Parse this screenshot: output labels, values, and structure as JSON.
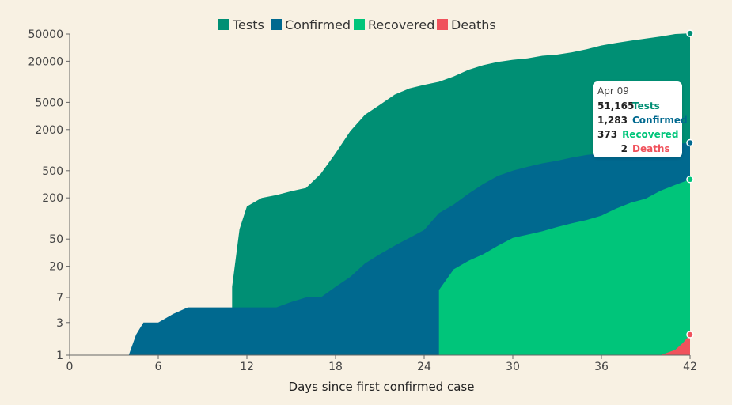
{
  "colors": {
    "tests": "#008f74",
    "confirmed": "#00698f",
    "recovered": "#00c57a",
    "deaths": "#f0525c",
    "background": "#f8f1e3"
  },
  "chart_data": {
    "type": "area",
    "scale_y": "log",
    "xlabel": "Days since first confirmed case",
    "ylabel": "",
    "xlim": [
      0,
      42
    ],
    "ylim": [
      1,
      50000
    ],
    "x_ticks": [
      0,
      6,
      12,
      18,
      24,
      30,
      36,
      42
    ],
    "y_ticks": [
      1,
      3,
      7,
      20,
      50,
      200,
      500,
      2000,
      5000,
      20000,
      50000
    ],
    "legend_position": "top-center",
    "series": [
      {
        "name": "Tests",
        "key": "tests",
        "points": [
          [
            11,
            10
          ],
          [
            11.5,
            70
          ],
          [
            12,
            150
          ],
          [
            13,
            200
          ],
          [
            14,
            220
          ],
          [
            15,
            250
          ],
          [
            16,
            280
          ],
          [
            17,
            450
          ],
          [
            18,
            900
          ],
          [
            19,
            1900
          ],
          [
            20,
            3300
          ],
          [
            21,
            4600
          ],
          [
            22,
            6500
          ],
          [
            23,
            8000
          ],
          [
            24,
            9000
          ],
          [
            25,
            10000
          ],
          [
            26,
            12000
          ],
          [
            27,
            15000
          ],
          [
            28,
            17500
          ],
          [
            29,
            19500
          ],
          [
            30,
            21000
          ],
          [
            31,
            22000
          ],
          [
            32,
            24000
          ],
          [
            33,
            25000
          ],
          [
            34,
            27000
          ],
          [
            35,
            30000
          ],
          [
            36,
            34000
          ],
          [
            37,
            37000
          ],
          [
            38,
            40000
          ],
          [
            39,
            43000
          ],
          [
            40,
            46000
          ],
          [
            41,
            50000
          ],
          [
            42,
            51165
          ]
        ]
      },
      {
        "name": "Confirmed",
        "key": "confirmed",
        "points": [
          [
            0,
            1
          ],
          [
            4,
            1
          ],
          [
            4.5,
            2
          ],
          [
            5,
            3
          ],
          [
            6,
            3
          ],
          [
            7,
            4
          ],
          [
            8,
            5
          ],
          [
            14,
            5
          ],
          [
            15,
            6
          ],
          [
            16,
            7
          ],
          [
            17,
            7
          ],
          [
            18,
            10
          ],
          [
            19,
            14
          ],
          [
            20,
            22
          ],
          [
            21,
            30
          ],
          [
            22,
            40
          ],
          [
            23,
            52
          ],
          [
            24,
            68
          ],
          [
            25,
            120
          ],
          [
            26,
            160
          ],
          [
            27,
            230
          ],
          [
            28,
            320
          ],
          [
            29,
            420
          ],
          [
            30,
            500
          ],
          [
            31,
            570
          ],
          [
            32,
            640
          ],
          [
            33,
            700
          ],
          [
            34,
            780
          ],
          [
            35,
            850
          ],
          [
            36,
            900
          ],
          [
            37,
            970
          ],
          [
            38,
            1030
          ],
          [
            39,
            1090
          ],
          [
            40,
            1150
          ],
          [
            41,
            1220
          ],
          [
            42,
            1283
          ]
        ]
      },
      {
        "name": "Recovered",
        "key": "recovered",
        "points": [
          [
            25,
            9
          ],
          [
            26,
            18
          ],
          [
            27,
            24
          ],
          [
            28,
            30
          ],
          [
            29,
            40
          ],
          [
            30,
            52
          ],
          [
            31,
            58
          ],
          [
            32,
            65
          ],
          [
            33,
            75
          ],
          [
            34,
            85
          ],
          [
            35,
            95
          ],
          [
            36,
            110
          ],
          [
            37,
            140
          ],
          [
            38,
            170
          ],
          [
            39,
            195
          ],
          [
            40,
            255
          ],
          [
            41,
            310
          ],
          [
            42,
            373
          ]
        ]
      },
      {
        "name": "Deaths",
        "key": "deaths",
        "points": [
          [
            30,
            1
          ],
          [
            40,
            1
          ],
          [
            41,
            1.2
          ],
          [
            41.5,
            1.5
          ],
          [
            42,
            2
          ]
        ]
      }
    ],
    "tooltip": {
      "date": "Apr 09",
      "rows": [
        {
          "value": "51,165",
          "label": "Tests",
          "key": "tests"
        },
        {
          "value": "1,283",
          "label": "Confirmed",
          "key": "confirmed"
        },
        {
          "value": "373",
          "label": "Recovered",
          "key": "recovered"
        },
        {
          "value": "2",
          "label": "Deaths",
          "key": "deaths"
        }
      ]
    }
  }
}
